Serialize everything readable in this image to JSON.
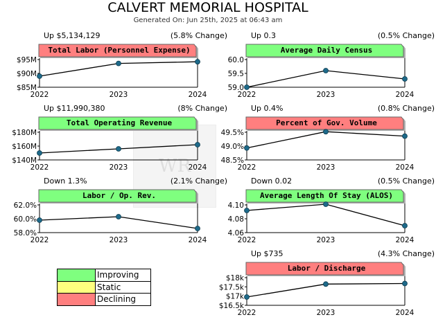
{
  "header": {
    "title": "CALVERT MEMORIAL HOSPITAL",
    "generated": "Generated On: Jun 25th, 2025 at 06:43 am"
  },
  "colors": {
    "improving": "#7fff7f",
    "static": "#ffff7f",
    "declining": "#ff7f7f",
    "line": "#000000",
    "marker": "#1e6a8a"
  },
  "legend": {
    "items": [
      {
        "label": "Improving",
        "color": "#7fff7f"
      },
      {
        "label": "Static",
        "color": "#ffff7f"
      },
      {
        "label": "Declining",
        "color": "#ff7f7f"
      }
    ]
  },
  "chart_data": [
    {
      "type": "line",
      "title": "Total Labor (Personnel Expense)",
      "status": "declining",
      "change_amount": "Up $5,134,129",
      "change_pct": "(5.8% Change)",
      "x": [
        "2022",
        "2023",
        "2024"
      ],
      "values": [
        89.0,
        93.6,
        94.2
      ],
      "ylim": [
        85,
        95
      ],
      "yticks": [
        85,
        90,
        95
      ],
      "ytick_labels": [
        "$85M",
        "$90M",
        "$95M"
      ]
    },
    {
      "type": "line",
      "title": "Average Daily Census",
      "status": "improving",
      "change_amount": "Up 0.3",
      "change_pct": "(0.5% Change)",
      "x": [
        "2022",
        "2023",
        "2024"
      ],
      "values": [
        59.0,
        59.6,
        59.3
      ],
      "ylim": [
        59.0,
        60.0
      ],
      "yticks": [
        59.0,
        59.5,
        60.0
      ],
      "ytick_labels": [
        "59.0",
        "59.5",
        "60.0"
      ]
    },
    {
      "type": "line",
      "title": "Total Operating Revenue",
      "status": "improving",
      "change_amount": "Up $11,990,380",
      "change_pct": "(8% Change)",
      "x": [
        "2022",
        "2023",
        "2024"
      ],
      "values": [
        150.0,
        156.0,
        162.0
      ],
      "ylim": [
        140,
        180
      ],
      "yticks": [
        140,
        160,
        180
      ],
      "ytick_labels": [
        "$140M",
        "$160M",
        "$180M"
      ]
    },
    {
      "type": "line",
      "title": "Percent of Gov. Volume",
      "status": "declining",
      "change_amount": "Up 0.4%",
      "change_pct": "(0.8% Change)",
      "x": [
        "2022",
        "2023",
        "2024"
      ],
      "values": [
        48.93,
        49.52,
        49.36
      ],
      "ylim": [
        48.5,
        49.5
      ],
      "yticks": [
        48.5,
        49.0,
        49.5
      ],
      "ytick_labels": [
        "48.5%",
        "49.0%",
        "49.5%"
      ]
    },
    {
      "type": "line",
      "title": "Labor / Op. Rev.",
      "status": "improving",
      "change_amount": "Down 1.3%",
      "change_pct": "(2.1% Change)",
      "x": [
        "2022",
        "2023",
        "2024"
      ],
      "values": [
        59.8,
        60.3,
        58.6
      ],
      "ylim": [
        58.0,
        62.0
      ],
      "yticks": [
        58.0,
        60.0,
        62.0
      ],
      "ytick_labels": [
        "58.0%",
        "60.0%",
        "62.0%"
      ]
    },
    {
      "type": "line",
      "title": "Average Length Of Stay (ALOS)",
      "status": "improving",
      "change_amount": "Down 0.02",
      "change_pct": "(0.5% Change)",
      "x": [
        "2022",
        "2023",
        "2024"
      ],
      "values": [
        4.092,
        4.101,
        4.07
      ],
      "ylim": [
        4.06,
        4.1
      ],
      "yticks": [
        4.06,
        4.08,
        4.1
      ],
      "ytick_labels": [
        "4.06",
        "4.08",
        "4.10"
      ]
    },
    {
      "type": "line",
      "title": "Labor / Discharge",
      "status": "declining",
      "change_amount": "Up $735",
      "change_pct": "(4.3% Change)",
      "x": [
        "2022",
        "2023",
        "2024"
      ],
      "values": [
        16.95,
        17.65,
        17.68
      ],
      "ylim": [
        16.5,
        18.0
      ],
      "yticks": [
        16.5,
        17.0,
        17.5,
        18.0
      ],
      "ytick_labels": [
        "$16.5k",
        "$17k",
        "$17.5k",
        "$18k"
      ]
    }
  ],
  "watermark_text": "WR"
}
